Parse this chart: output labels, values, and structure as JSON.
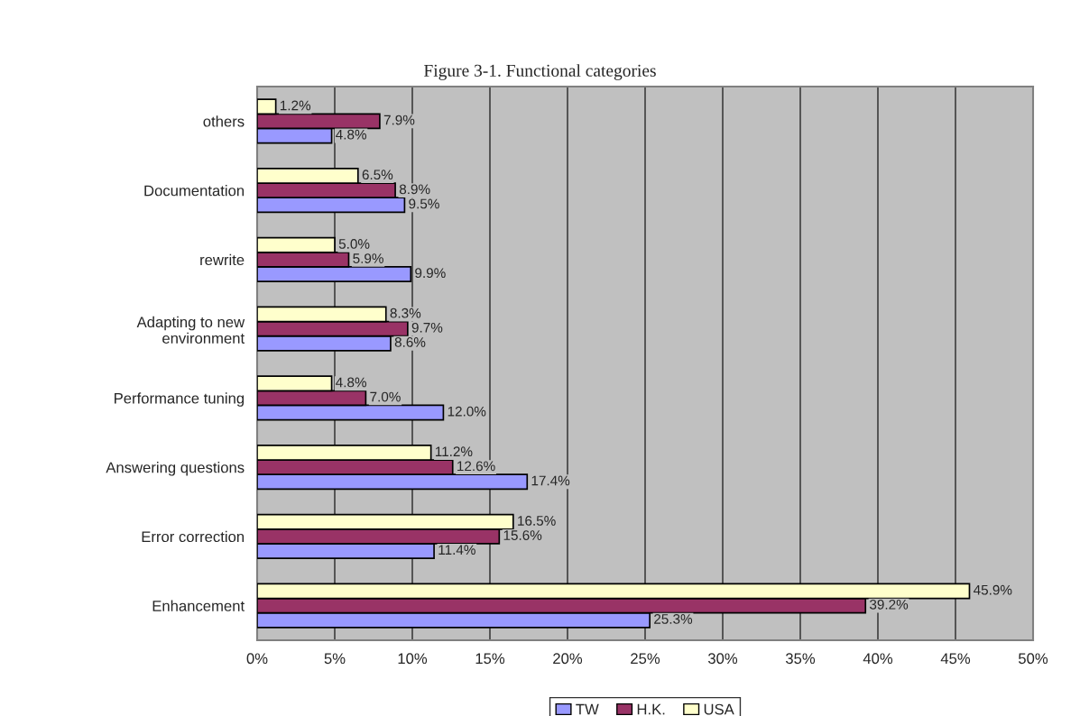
{
  "chart_data": {
    "type": "bar",
    "orientation": "horizontal",
    "title": "Figure 3-1. Functional categories",
    "categories": [
      "others",
      "Documentation",
      "rewrite",
      "Adapting to new\nenvironment",
      "Performance tuning",
      "Answering questions",
      "Error correction",
      "Enhancement"
    ],
    "series": [
      {
        "name": "TW",
        "color": "#9999ff",
        "values": [
          4.8,
          9.5,
          9.9,
          8.6,
          12.0,
          17.4,
          11.4,
          25.3
        ],
        "value_labels": [
          "4.8%",
          "9.5%",
          "9.9%",
          "8.6%",
          "12.0%",
          "17.4%",
          "11.4%",
          "25.3%"
        ]
      },
      {
        "name": "H.K.",
        "color": "#993366",
        "values": [
          7.9,
          8.9,
          5.9,
          9.7,
          7.0,
          12.6,
          15.6,
          39.2
        ],
        "value_labels": [
          "7.9%",
          "8.9%",
          "5.9%",
          "9.7%",
          "7.0%",
          "12.6%",
          "15.6%",
          "39.2%"
        ]
      },
      {
        "name": "USA",
        "color": "#ffffcc",
        "values": [
          1.2,
          6.5,
          5.0,
          8.3,
          4.8,
          11.2,
          16.5,
          45.9
        ],
        "value_labels": [
          "1.2%",
          "6.5%",
          "5.0%",
          "8.3%",
          "4.8%",
          "11.2%",
          "16.5%",
          "45.9%"
        ]
      }
    ],
    "xlim": [
      0,
      50
    ],
    "xticks": [
      {
        "value": 0,
        "label": "0%"
      },
      {
        "value": 5,
        "label": "5%"
      },
      {
        "value": 10,
        "label": "10%"
      },
      {
        "value": 15,
        "label": "15%"
      },
      {
        "value": 20,
        "label": "20%"
      },
      {
        "value": 25,
        "label": "25%"
      },
      {
        "value": 30,
        "label": "30%"
      },
      {
        "value": 35,
        "label": "35%"
      },
      {
        "value": 40,
        "label": "40%"
      },
      {
        "value": 45,
        "label": "45%"
      },
      {
        "value": 50,
        "label": "50%"
      }
    ],
    "grid": "x",
    "legend": "bottom"
  }
}
